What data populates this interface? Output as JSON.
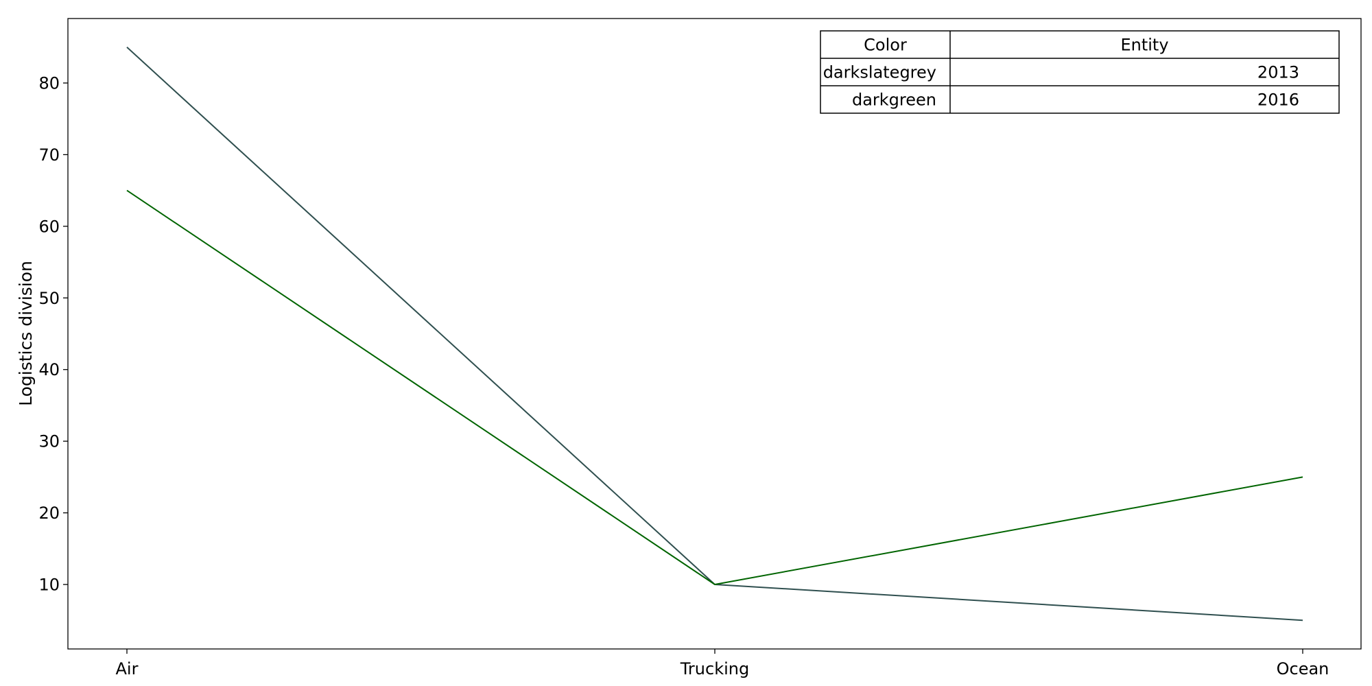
{
  "chart_data": {
    "type": "line",
    "title": "",
    "xlabel": "",
    "ylabel": "Logistics division",
    "categories": [
      "Air",
      "Trucking",
      "Ocean"
    ],
    "series": [
      {
        "name": "2013",
        "color": "#2f4f4f",
        "values": [
          85,
          10,
          5
        ]
      },
      {
        "name": "2016",
        "color": "#006400",
        "values": [
          65,
          10,
          25
        ]
      }
    ],
    "ylim": [
      1.0,
      89.0
    ],
    "yticks": [
      10,
      20,
      30,
      40,
      50,
      60,
      70,
      80
    ],
    "grid": false,
    "legend": {
      "placement": "top-right",
      "headers": [
        "Color",
        "Entity"
      ],
      "rows": [
        {
          "color": "darkslategrey",
          "entity": "2013"
        },
        {
          "color": "darkgreen",
          "entity": "2016"
        }
      ]
    }
  }
}
